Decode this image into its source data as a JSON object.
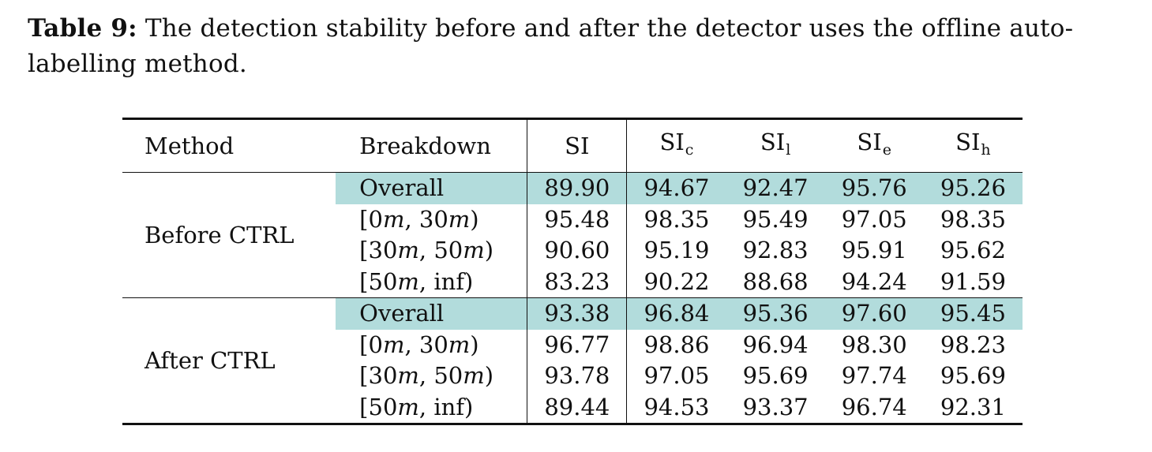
{
  "caption": {
    "label": "Table 9:",
    "text": "The detection stability before and after the detector uses the offline auto-labelling method."
  },
  "table": {
    "headers": {
      "method": "Method",
      "breakdown": "Breakdown",
      "si": "SI",
      "sic": {
        "base": "SI",
        "sub": "c"
      },
      "sil": {
        "base": "SI",
        "sub": "l"
      },
      "sie": {
        "base": "SI",
        "sub": "e"
      },
      "sih": {
        "base": "SI",
        "sub": "h"
      }
    },
    "groups": [
      {
        "method": "Before CTRL",
        "rows": [
          {
            "breakdown": "Overall",
            "si": "89.90",
            "sic": "94.67",
            "sil": "92.47",
            "sie": "95.76",
            "sih": "95.26"
          },
          {
            "breakdown": "[0m, 30m)",
            "si": "95.48",
            "sic": "98.35",
            "sil": "95.49",
            "sie": "97.05",
            "sih": "98.35"
          },
          {
            "breakdown": "[30m, 50m)",
            "si": "90.60",
            "sic": "95.19",
            "sil": "92.83",
            "sie": "95.91",
            "sih": "95.62"
          },
          {
            "breakdown": "[50m, inf)",
            "si": "83.23",
            "sic": "90.22",
            "sil": "88.68",
            "sie": "94.24",
            "sih": "91.59"
          }
        ]
      },
      {
        "method": "After CTRL",
        "rows": [
          {
            "breakdown": "Overall",
            "si": "93.38",
            "sic": "96.84",
            "sil": "95.36",
            "sie": "97.60",
            "sih": "95.45"
          },
          {
            "breakdown": "[0m, 30m)",
            "si": "96.77",
            "sic": "98.86",
            "sil": "96.94",
            "sie": "98.30",
            "sih": "98.23"
          },
          {
            "breakdown": "[30m, 50m)",
            "si": "93.78",
            "sic": "97.05",
            "sil": "95.69",
            "sie": "97.74",
            "sih": "95.69"
          },
          {
            "breakdown": "[50m, inf)",
            "si": "89.44",
            "sic": "94.53",
            "sil": "93.37",
            "sie": "96.74",
            "sih": "92.31"
          }
        ]
      }
    ],
    "highlight_color": "#b2dcdc"
  }
}
